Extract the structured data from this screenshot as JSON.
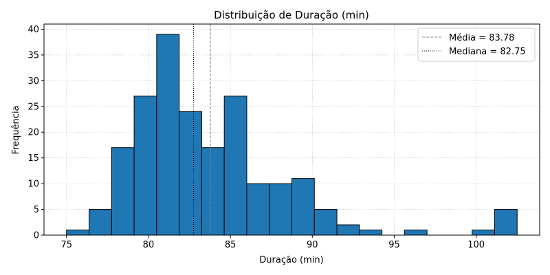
{
  "chart_data": {
    "type": "bar",
    "title": "Distribuição de Duração (min)",
    "xlabel": "Duração (min)",
    "ylabel": "Frequência",
    "xlim": [
      73.625,
      103.875
    ],
    "ylim": [
      0,
      41
    ],
    "xticks": [
      75,
      80,
      85,
      90,
      95,
      100
    ],
    "yticks": [
      0,
      5,
      10,
      15,
      20,
      25,
      30,
      35,
      40
    ],
    "bin_edges": [
      75.0,
      76.375,
      77.75,
      79.125,
      80.5,
      81.875,
      83.25,
      84.625,
      86.0,
      87.375,
      88.75,
      90.125,
      91.5,
      92.875,
      94.25,
      95.625,
      97.0,
      98.375,
      99.75,
      101.125,
      102.5
    ],
    "values": [
      1,
      5,
      17,
      27,
      39,
      24,
      17,
      27,
      10,
      10,
      11,
      5,
      2,
      1,
      0,
      1,
      0,
      0,
      1,
      5
    ],
    "bar_color": "#1f77b4",
    "edge_color": "#000000",
    "grid": true,
    "reference_lines": [
      {
        "label": "Média = 83.78",
        "value": 83.78,
        "style": "dashed",
        "color": "#808080"
      },
      {
        "label": "Mediana = 82.75",
        "value": 82.75,
        "style": "dotted",
        "color": "#000000"
      }
    ],
    "legend_position": "top-right"
  }
}
